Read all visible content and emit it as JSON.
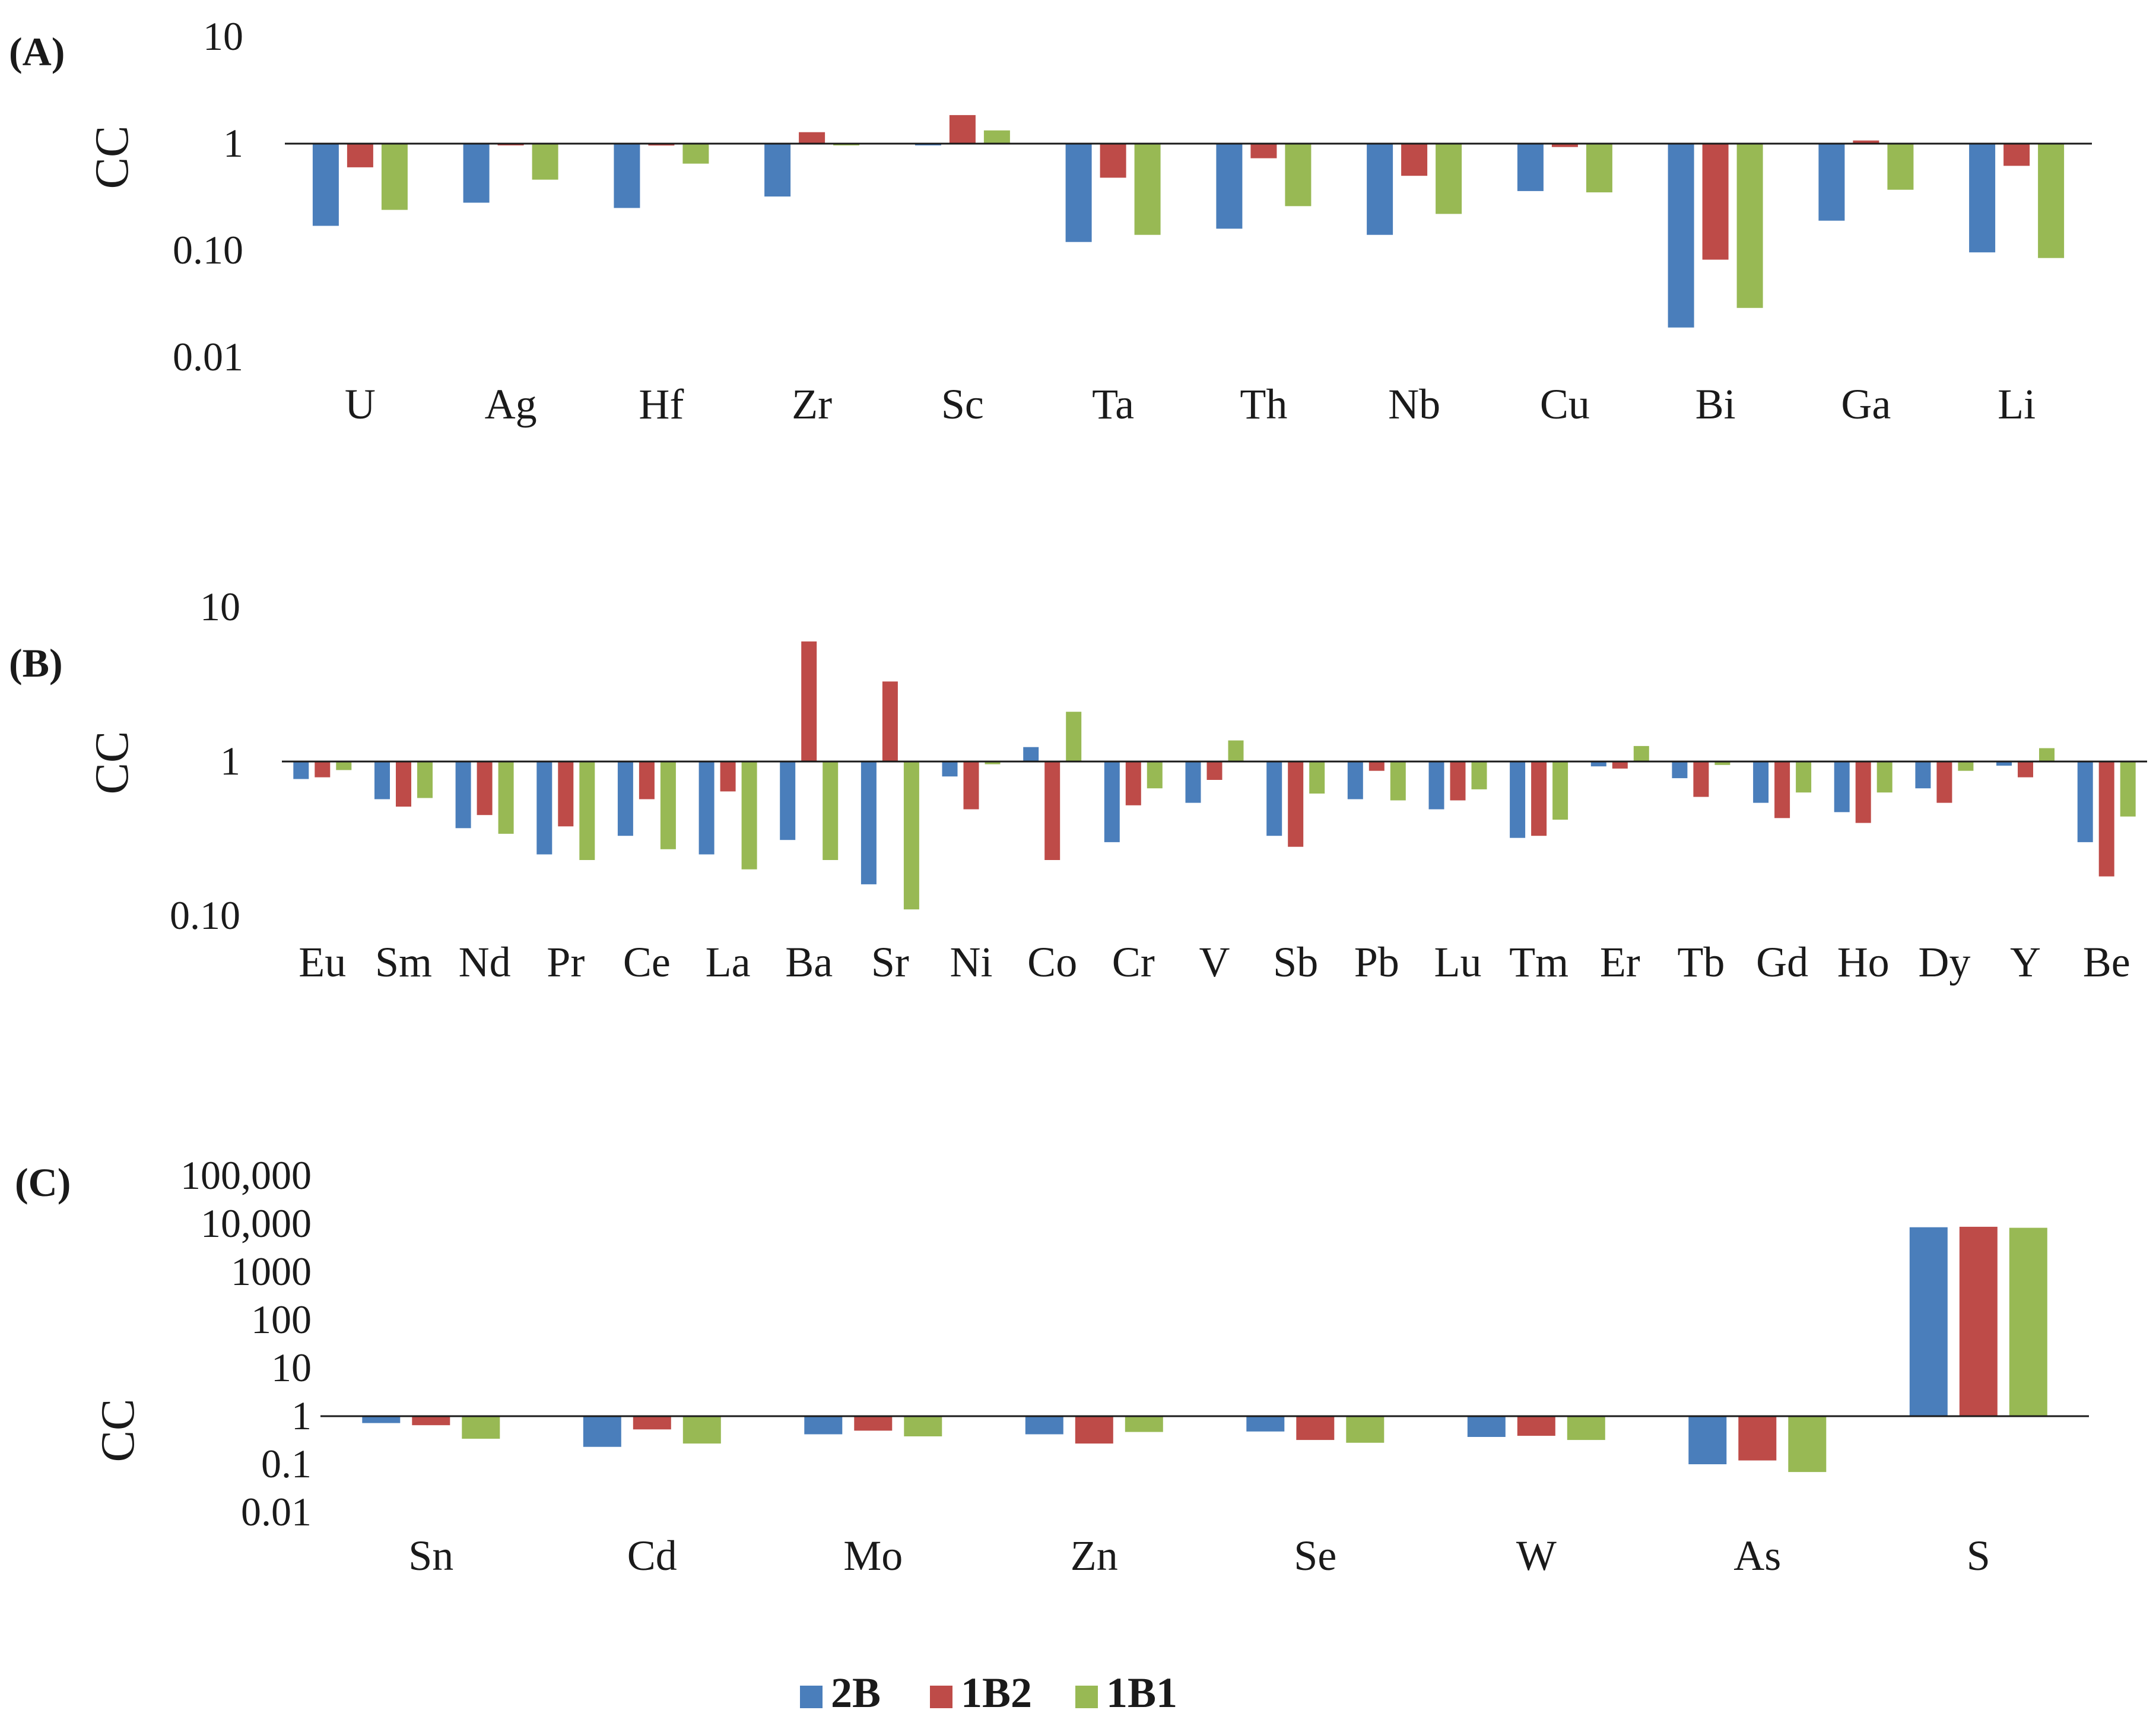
{
  "series": [
    {
      "name": "2B",
      "color": "#4a7ebb"
    },
    {
      "name": "1B2",
      "color": "#be4b48"
    },
    {
      "name": "1B1",
      "color": "#98b954"
    }
  ],
  "chart_data": [
    {
      "type": "bar",
      "panel_label": "(A)",
      "ylabel": "CC",
      "scale": "log",
      "baseline": 1,
      "ticks": [
        {
          "value": 10,
          "label": "10"
        },
        {
          "value": 1,
          "label": "1"
        },
        {
          "value": 0.1,
          "label": "0.10"
        },
        {
          "value": 0.01,
          "label": "0.01"
        }
      ],
      "categories": [
        "U",
        "Ag",
        "Hf",
        "Zr",
        "Sc",
        "Ta",
        "Th",
        "Nb",
        "Cu",
        "Bi",
        "Ga",
        "Li"
      ],
      "series": [
        {
          "name": "2B",
          "values": [
            0.17,
            0.28,
            0.25,
            0.32,
            0.97,
            0.12,
            0.16,
            0.14,
            0.36,
            0.019,
            0.19,
            0.096
          ]
        },
        {
          "name": "1B2",
          "values": [
            0.6,
            0.97,
            0.96,
            1.28,
            1.85,
            0.48,
            0.73,
            0.5,
            0.93,
            0.082,
            1.07,
            0.62
          ]
        },
        {
          "name": "1B1",
          "values": [
            0.24,
            0.46,
            0.65,
            0.97,
            1.33,
            0.14,
            0.26,
            0.22,
            0.35,
            0.029,
            0.37,
            0.085
          ]
        }
      ]
    },
    {
      "type": "bar",
      "panel_label": "(B)",
      "ylabel": "CC",
      "scale": "log",
      "baseline": 1,
      "ticks": [
        {
          "value": 10,
          "label": "10"
        },
        {
          "value": 1,
          "label": "1"
        },
        {
          "value": 0.1,
          "label": "0.10"
        }
      ],
      "categories": [
        "Eu",
        "Sm",
        "Nd",
        "Pr",
        "Ce",
        "La",
        "Ba",
        "Sr",
        "Ni",
        "Co",
        "Cr",
        "V",
        "Sb",
        "Pb",
        "Lu",
        "Tm",
        "Er",
        "Tb",
        "Gd",
        "Ho",
        "Dy",
        "Y",
        "Be"
      ],
      "series": [
        {
          "name": "2B",
          "values": [
            0.77,
            0.57,
            0.37,
            0.25,
            0.33,
            0.25,
            0.31,
            0.16,
            0.8,
            1.24,
            0.3,
            0.54,
            0.33,
            0.57,
            0.49,
            0.32,
            0.93,
            0.78,
            0.54,
            0.47,
            0.67,
            0.94,
            0.3
          ]
        },
        {
          "name": "1B2",
          "values": [
            0.79,
            0.51,
            0.45,
            0.38,
            0.57,
            0.64,
            6.0,
            3.3,
            0.49,
            0.23,
            0.52,
            0.76,
            0.28,
            0.87,
            0.56,
            0.33,
            0.9,
            0.59,
            0.43,
            0.4,
            0.54,
            0.79,
            0.18
          ]
        },
        {
          "name": "1B1",
          "values": [
            0.88,
            0.58,
            0.34,
            0.23,
            0.27,
            0.2,
            0.23,
            0.11,
            0.96,
            2.1,
            0.67,
            1.37,
            0.62,
            0.56,
            0.66,
            0.42,
            1.26,
            0.95,
            0.63,
            0.63,
            0.87,
            1.22,
            0.44
          ]
        }
      ]
    },
    {
      "type": "bar",
      "panel_label": "(C)",
      "ylabel": "CC",
      "scale": "log",
      "baseline": 1,
      "ticks": [
        {
          "value": 100000,
          "label": "100,000"
        },
        {
          "value": 10000,
          "label": "10,000"
        },
        {
          "value": 1000,
          "label": "1000"
        },
        {
          "value": 100,
          "label": "100"
        },
        {
          "value": 10,
          "label": "10"
        },
        {
          "value": 1,
          "label": "1"
        },
        {
          "value": 0.1,
          "label": "0.1"
        },
        {
          "value": 0.01,
          "label": "0.01"
        }
      ],
      "categories": [
        "Sn",
        "Cd",
        "Mo",
        "Zn",
        "Se",
        "W",
        "As",
        "S"
      ],
      "series": [
        {
          "name": "2B",
          "values": [
            0.72,
            0.23,
            0.42,
            0.42,
            0.48,
            0.37,
            0.1,
            8500
          ]
        },
        {
          "name": "1B2",
          "values": [
            0.65,
            0.53,
            0.5,
            0.27,
            0.32,
            0.39,
            0.12,
            8700
          ]
        },
        {
          "name": "1B1",
          "values": [
            0.34,
            0.27,
            0.38,
            0.47,
            0.28,
            0.32,
            0.069,
            8300
          ]
        }
      ]
    }
  ],
  "legend": {
    "items": [
      "2B",
      "1B2",
      "1B1"
    ]
  }
}
